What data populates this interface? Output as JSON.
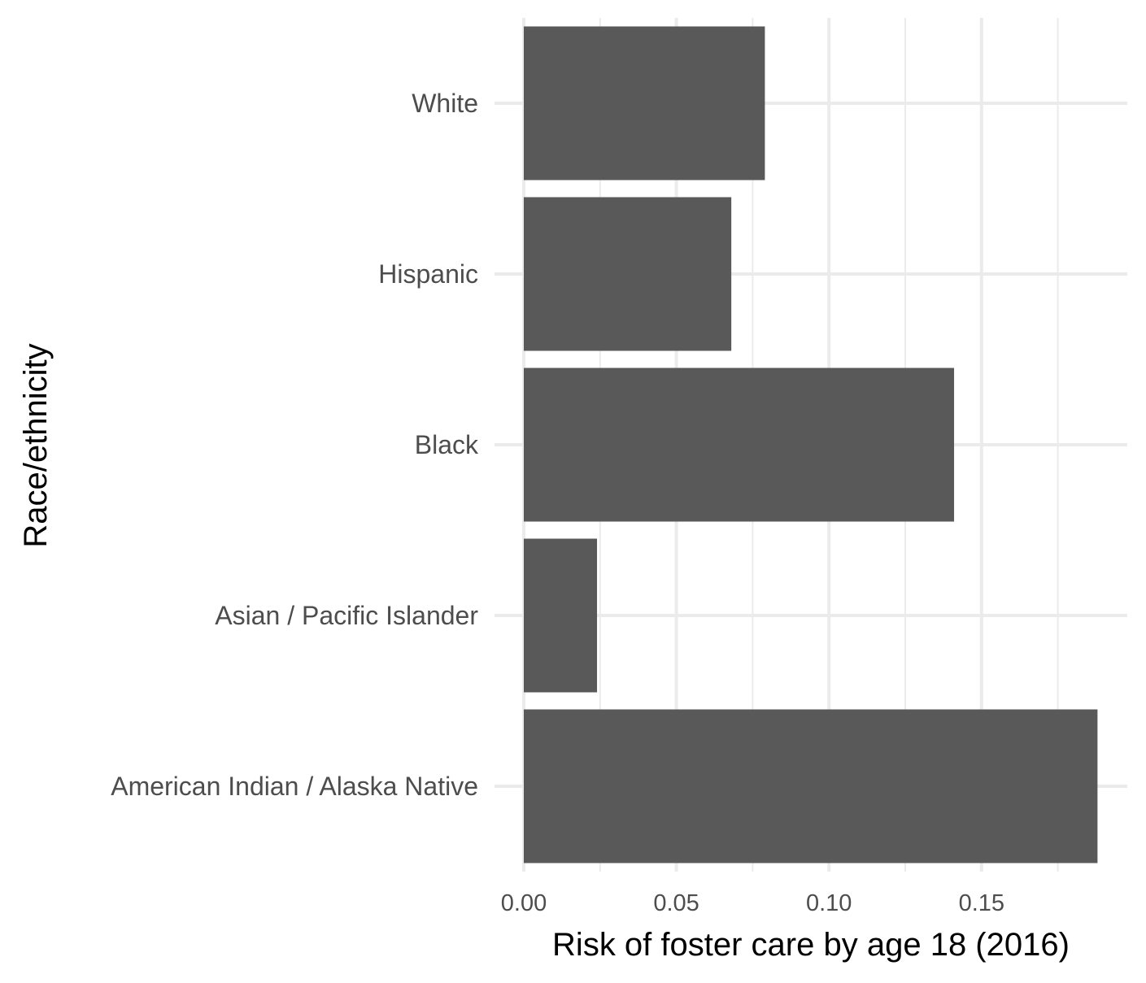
{
  "chart_data": {
    "type": "bar",
    "orientation": "horizontal",
    "categories": [
      "White",
      "Hispanic",
      "Black",
      "Asian / Pacific Islander",
      "American Indian / Alaska Native"
    ],
    "values": [
      0.079,
      0.068,
      0.141,
      0.024,
      0.188
    ],
    "xlabel": "Risk of foster care by age 18 (2016)",
    "ylabel": "Race/ethnicity",
    "xlim": [
      0,
      0.19
    ],
    "x_ticks": [
      0.0,
      0.05,
      0.1,
      0.15
    ],
    "x_tick_labels": [
      "0.00",
      "0.05",
      "0.10",
      "0.15"
    ],
    "grid": true,
    "bar_color": "#595959",
    "grid_color": "#ebebeb"
  }
}
